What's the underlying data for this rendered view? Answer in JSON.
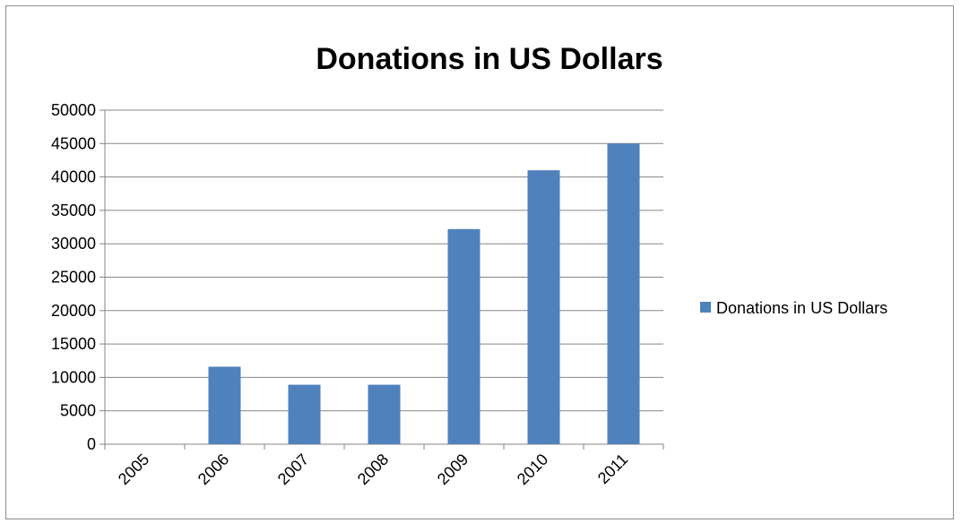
{
  "chart_data": {
    "type": "bar",
    "title": "Donations in US Dollars",
    "categories": [
      "2005",
      "2006",
      "2007",
      "2008",
      "2009",
      "2010",
      "2011"
    ],
    "series": [
      {
        "name": "Donations in US Dollars",
        "color": "#4f81bd",
        "values": [
          0,
          11600,
          8900,
          8900,
          32200,
          41000,
          45000
        ]
      }
    ],
    "ylim": [
      0,
      50000
    ],
    "yticks": [
      0,
      5000,
      10000,
      15000,
      20000,
      25000,
      30000,
      35000,
      40000,
      45000,
      50000
    ],
    "grid": true,
    "legend_position": "right",
    "xlabel": "",
    "ylabel": ""
  }
}
